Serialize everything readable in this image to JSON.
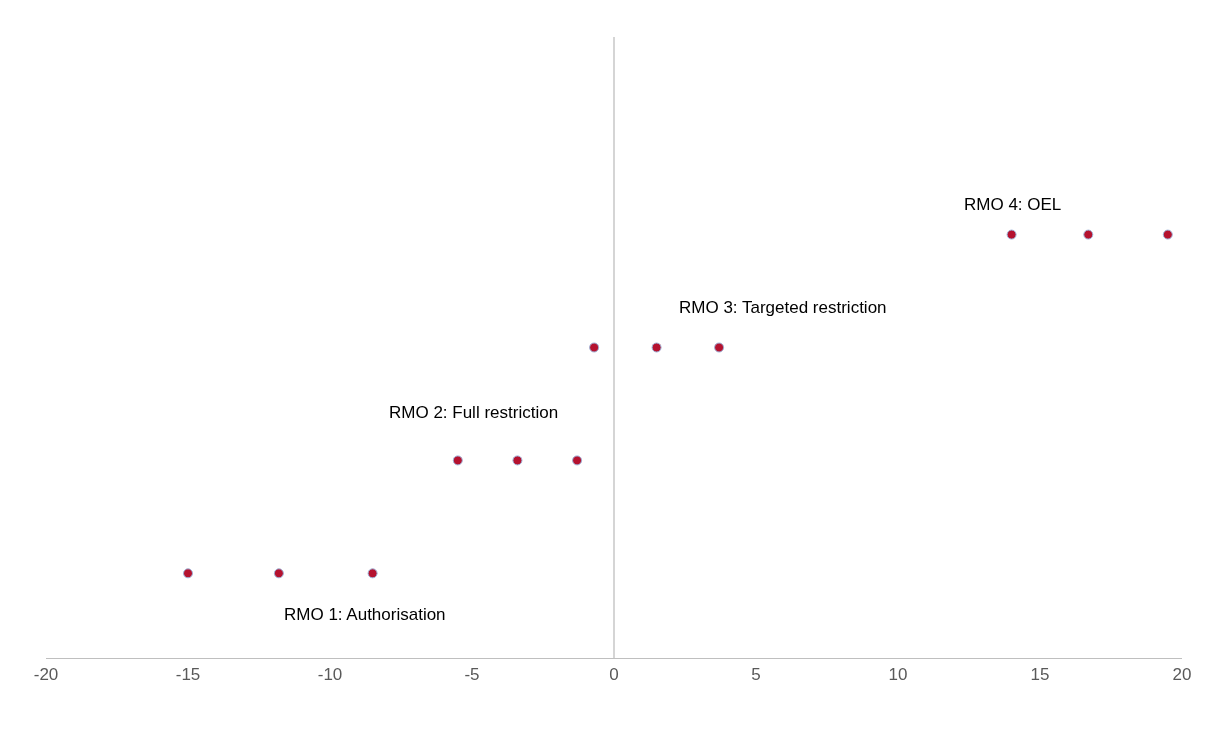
{
  "chart_data": {
    "type": "scatter",
    "orientation": "horizontal",
    "marker": "circle",
    "grid": false,
    "legend": false,
    "tick_labels": "x",
    "categories": [
      null,
      null,
      null,
      null,
      null,
      null,
      null,
      null,
      null,
      null,
      null
    ],
    "xlim": [
      -20,
      20
    ],
    "xticks": [
      -20,
      -15,
      -10,
      -5,
      0,
      5,
      10,
      15,
      20
    ],
    "series": [
      {
        "color": "#b5122f",
        "values": [
          null,
          null,
          null,
          14.0,
          null,
          -0.7,
          null,
          -5.5,
          null,
          -15.0,
          null
        ]
      },
      {
        "color": "#b5122f",
        "values": [
          null,
          null,
          null,
          16.7,
          null,
          1.5,
          null,
          -3.4,
          null,
          -11.8,
          null
        ]
      },
      {
        "color": "#b5122f",
        "values": [
          null,
          null,
          null,
          19.5,
          null,
          3.7,
          null,
          -1.3,
          null,
          -8.5,
          null
        ]
      }
    ],
    "ref_lines": [
      {
        "axis": "x",
        "value": 0,
        "color": "#bfbfbf"
      }
    ],
    "annotations": [
      "RMO 1: Authorisation",
      "RMO 2: Full restriction",
      "RMO 3: Targeted restriction",
      "RMO 4: OEL"
    ]
  }
}
